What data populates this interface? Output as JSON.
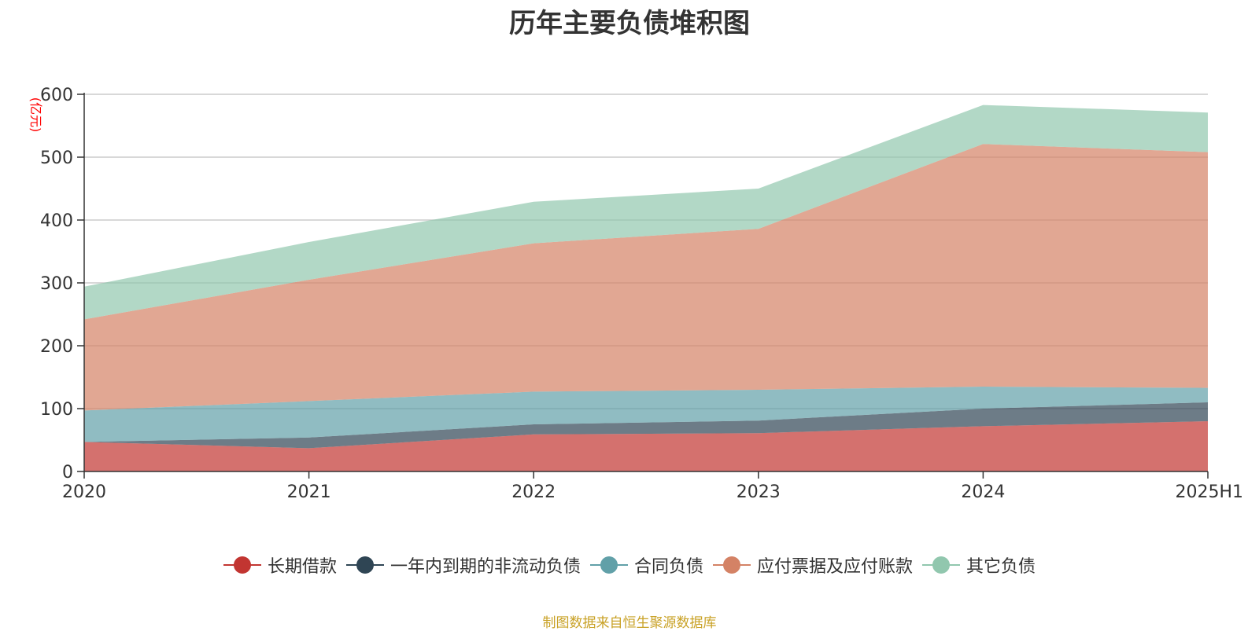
{
  "title": "历年主要负债堆积图",
  "footer": "制图数据来自恒生聚源数据库",
  "colors": {
    "长期借款": "#c23531",
    "一年内到期的非流动负债": "#2f4554",
    "合同负债": "#61a0a8",
    "应付票据及应付账款": "#d48265",
    "其它负债": "#91c7ae",
    "grid": "#cccccc",
    "unit": "#ff0000",
    "footer": "#c9a227"
  },
  "chart_data": {
    "type": "area",
    "stacked": true,
    "title": "历年主要负债堆积图",
    "ylabel": "(亿元)",
    "ylim": [
      0,
      600
    ],
    "yticks": [
      0,
      100,
      200,
      300,
      400,
      500,
      600
    ],
    "x": [
      "2020",
      "2021",
      "2022",
      "2023",
      "2024",
      "2025H1"
    ],
    "grid": true,
    "legend_position": "bottom",
    "series": [
      {
        "name": "长期借款",
        "values": [
          47,
          37,
          59,
          61,
          72,
          80
        ]
      },
      {
        "name": "一年内到期的非流动负债",
        "values": [
          0,
          17,
          16,
          20,
          28,
          30
        ]
      },
      {
        "name": "合同负债",
        "values": [
          50,
          58,
          52,
          49,
          35,
          23
        ]
      },
      {
        "name": "应付票据及应付账款",
        "values": [
          145,
          193,
          236,
          256,
          386,
          375
        ]
      },
      {
        "name": "其它负债",
        "values": [
          52,
          60,
          66,
          64,
          62,
          63
        ]
      }
    ]
  }
}
